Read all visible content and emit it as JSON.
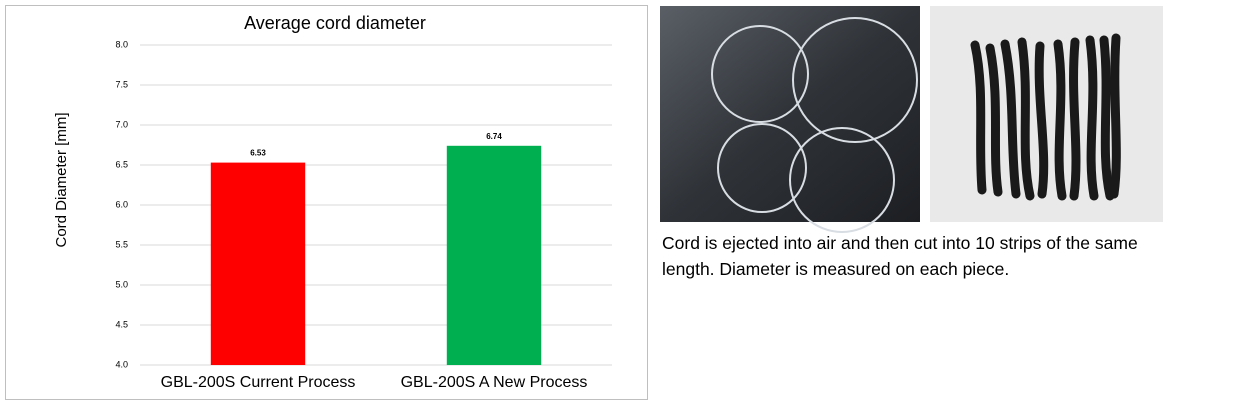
{
  "chart_data": {
    "type": "bar",
    "title": "Average cord diameter",
    "ylabel": "Cord Diameter [mm]",
    "categories": [
      "GBL-200S Current Process",
      "GBL-200S A New Process"
    ],
    "values": [
      6.53,
      6.74
    ],
    "colors": [
      "#ff0000",
      "#00b050"
    ],
    "ylim": [
      4,
      8
    ],
    "yticks": [
      {
        "value": 4,
        "label": "4.0"
      },
      {
        "value": 4.5,
        "label": "4.5"
      },
      {
        "value": 5,
        "label": "5.0"
      },
      {
        "value": 5.5,
        "label": "5.5"
      },
      {
        "value": 6,
        "label": "6.0"
      },
      {
        "value": 6.5,
        "label": "6.5"
      },
      {
        "value": 7,
        "label": "7.0"
      },
      {
        "value": 7.5,
        "label": "7.5"
      },
      {
        "value": 8,
        "label": "8.0"
      }
    ],
    "grid": true
  },
  "caption": {
    "lines": [
      "Cord is ejected into air and then cut into 10 strips of the same",
      "length. Diameter is measured on each piece."
    ]
  }
}
